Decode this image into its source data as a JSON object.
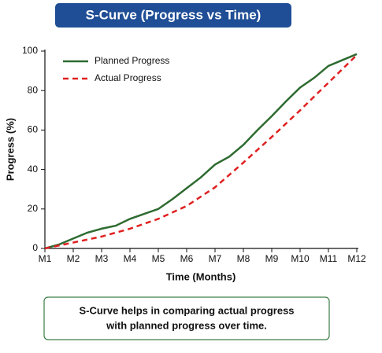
{
  "chart_data": {
    "type": "line",
    "title": "S-Curve (Progress vs Time)",
    "x_label": "Time (Months)",
    "y_label": "Progress (%)",
    "xlim": [
      1,
      12
    ],
    "ylim": [
      0,
      100
    ],
    "xticks": [
      {
        "value": 1,
        "label": "M1"
      },
      {
        "value": 2,
        "label": "M2"
      },
      {
        "value": 3,
        "label": "M3"
      },
      {
        "value": 4,
        "label": "M4"
      },
      {
        "value": 5,
        "label": "M5"
      },
      {
        "value": 6,
        "label": "M6"
      },
      {
        "value": 7,
        "label": "M7"
      },
      {
        "value": 8,
        "label": "M8"
      },
      {
        "value": 9,
        "label": "M9"
      },
      {
        "value": 10,
        "label": "M10"
      },
      {
        "value": 11,
        "label": "M11"
      },
      {
        "value": 12,
        "label": "M12"
      }
    ],
    "yticks": [
      0,
      20,
      40,
      60,
      80,
      100
    ],
    "legend": "upper left",
    "series": [
      {
        "name": "Planned Progress",
        "color": "#2e6b30",
        "dash": false,
        "x": [
          1,
          1.5,
          2,
          2.5,
          3,
          3.5,
          4,
          4.5,
          5,
          5.5,
          6,
          6.5,
          7,
          7.5,
          8,
          8.5,
          9,
          9.5,
          10,
          10.5,
          11,
          11.5,
          12
        ],
        "values": [
          0,
          2,
          5,
          8,
          10,
          11.5,
          15,
          17.5,
          20,
          25,
          30.5,
          36,
          42.5,
          46.5,
          52.5,
          60,
          67,
          74.5,
          81.5,
          86.5,
          92.5,
          95.5,
          98.5
        ]
      },
      {
        "name": "Actual Progress",
        "color": "#e02020",
        "dash": true,
        "x": [
          1,
          2,
          3,
          4,
          5,
          6,
          7,
          8,
          9,
          10,
          11,
          12
        ],
        "values": [
          0,
          3,
          6,
          10,
          15,
          21.5,
          31,
          43.5,
          56.5,
          70,
          84,
          98
        ]
      }
    ],
    "footnote": [
      "S-Curve helps in comparing actual progress",
      "with planned progress over time."
    ]
  }
}
